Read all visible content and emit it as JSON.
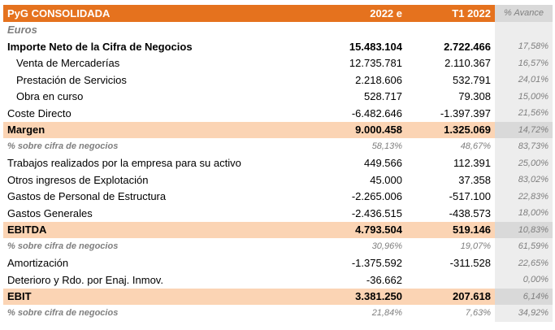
{
  "header": {
    "title": "PyG CONSOLIDADA",
    "col1": "2022 e",
    "col2": "T1 2022",
    "col3": "% Avance"
  },
  "units": "Euros",
  "rows": [
    {
      "label": "Importe Neto de la Cifra de Negocios",
      "v1": "15.483.104",
      "v2": "2.722.466",
      "pct": "17,58%"
    },
    {
      "label": "Venta de Mercaderías",
      "v1": "12.735.781",
      "v2": "2.110.367",
      "pct": "16,57%"
    },
    {
      "label": "Prestación de Servicios",
      "v1": "2.218.606",
      "v2": "532.791",
      "pct": "24,01%"
    },
    {
      "label": "Obra en curso",
      "v1": "528.717",
      "v2": "79.308",
      "pct": "15,00%"
    },
    {
      "label": "Coste Directo",
      "v1": "-6.482.646",
      "v2": "-1.397.397",
      "pct": "21,56%"
    },
    {
      "label": "Margen",
      "v1": "9.000.458",
      "v2": "1.325.069",
      "pct": "14,72%"
    },
    {
      "label": "% sobre cifra de negocios",
      "v1": "58,13%",
      "v2": "48,67%",
      "pct": "83,73%"
    },
    {
      "label": "Trabajos realizados por la empresa para su activo",
      "v1": "449.566",
      "v2": "112.391",
      "pct": "25,00%"
    },
    {
      "label": "Otros ingresos de Explotación",
      "v1": "45.000",
      "v2": "37.358",
      "pct": "83,02%"
    },
    {
      "label": "Gastos de Personal de Estructura",
      "v1": "-2.265.006",
      "v2": "-517.100",
      "pct": "22,83%"
    },
    {
      "label": "Gastos Generales",
      "v1": "-2.436.515",
      "v2": "-438.573",
      "pct": "18,00%"
    },
    {
      "label": "EBITDA",
      "v1": "4.793.504",
      "v2": "519.146",
      "pct": "10,83%"
    },
    {
      "label": "% sobre cifra de negocios",
      "v1": "30,96%",
      "v2": "19,07%",
      "pct": "61,59%"
    },
    {
      "label": "Amortización",
      "v1": "-1.375.592",
      "v2": "-311.528",
      "pct": "22,65%"
    },
    {
      "label": "Deterioro y Rdo.  por Enaj. Inmov.",
      "v1": "-36.662",
      "v2": "",
      "pct": "0,00%"
    },
    {
      "label": "EBIT",
      "v1": "3.381.250",
      "v2": "207.618",
      "pct": "6,14%"
    },
    {
      "label": "% sobre cifra de negocios",
      "v1": "21,84%",
      "v2": "7,63%",
      "pct": "34,92%"
    }
  ]
}
